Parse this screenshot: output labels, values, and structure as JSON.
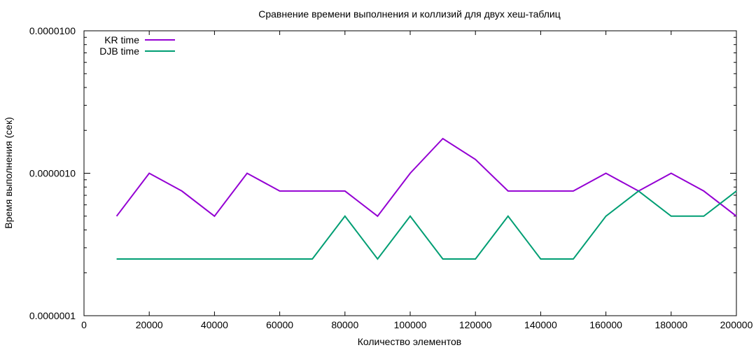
{
  "chart_data": {
    "type": "line",
    "title": "Сравнение времени выполнения и коллизий для двух хеш-таблиц",
    "xlabel": "Количество элементов",
    "ylabel": "Время выполнения (сек)",
    "xlim": [
      0,
      200000
    ],
    "ylim": [
      1e-07,
      1e-05
    ],
    "yscale": "log",
    "grid": false,
    "legend_position": "top-left",
    "x_ticks": [
      0,
      20000,
      40000,
      60000,
      80000,
      100000,
      120000,
      140000,
      160000,
      180000,
      200000
    ],
    "x_tick_labels": [
      "0",
      "20000",
      "40000",
      "60000",
      "80000",
      "100000",
      "120000",
      "140000",
      "160000",
      "180000",
      "200000"
    ],
    "y_ticks": [
      1e-07,
      1e-06,
      1e-05
    ],
    "y_tick_labels": [
      "0.0000001",
      "0.0000010",
      "0.0000100"
    ],
    "x": [
      10000,
      20000,
      30000,
      40000,
      50000,
      60000,
      70000,
      80000,
      90000,
      100000,
      110000,
      120000,
      130000,
      140000,
      150000,
      160000,
      170000,
      180000,
      190000,
      200000
    ],
    "series": [
      {
        "name": "KR time",
        "color": "#9400d3",
        "values": [
          5e-07,
          1e-06,
          7.5e-07,
          5e-07,
          1e-06,
          7.5e-07,
          7.5e-07,
          7.5e-07,
          5e-07,
          1e-06,
          1.75e-06,
          1.25e-06,
          7.5e-07,
          7.5e-07,
          7.5e-07,
          1e-06,
          7.5e-07,
          1e-06,
          7.5e-07,
          5e-07
        ]
      },
      {
        "name": "DJB time",
        "color": "#009e73",
        "values": [
          2.5e-07,
          2.5e-07,
          2.5e-07,
          2.5e-07,
          2.5e-07,
          2.5e-07,
          2.5e-07,
          5e-07,
          2.5e-07,
          5e-07,
          2.5e-07,
          2.5e-07,
          5e-07,
          2.5e-07,
          2.5e-07,
          5e-07,
          7.5e-07,
          5e-07,
          5e-07,
          7.5e-07
        ]
      }
    ]
  }
}
